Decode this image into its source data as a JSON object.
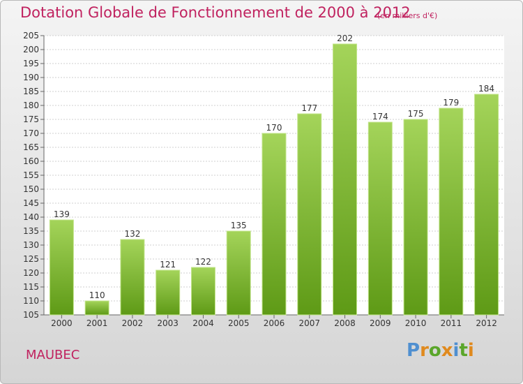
{
  "chart_data": {
    "type": "bar",
    "title": "Dotation Globale de Fonctionnement de 2000 à 2012",
    "subtitle": "(en milliers d'€)",
    "categories": [
      "2000",
      "2001",
      "2002",
      "2003",
      "2004",
      "2005",
      "2006",
      "2007",
      "2008",
      "2009",
      "2010",
      "2011",
      "2012"
    ],
    "values": [
      139,
      110,
      132,
      121,
      122,
      135,
      170,
      177,
      202,
      174,
      175,
      179,
      184
    ],
    "ylim": [
      105,
      205
    ],
    "yticks": [
      105,
      110,
      115,
      120,
      125,
      130,
      135,
      140,
      145,
      150,
      155,
      160,
      165,
      170,
      175,
      180,
      185,
      190,
      195,
      200,
      205
    ],
    "grid": true,
    "bar_color": "#8cc43e"
  },
  "place_name": "MAUBEC",
  "logo": {
    "letters": [
      "P",
      "r",
      "o",
      "x",
      "i",
      "t",
      "i"
    ]
  },
  "colors": {
    "title": "#c0225f",
    "bar_light": "#a4d45a",
    "bar_dark": "#5e9a16",
    "grid": "#cfcfcf"
  }
}
